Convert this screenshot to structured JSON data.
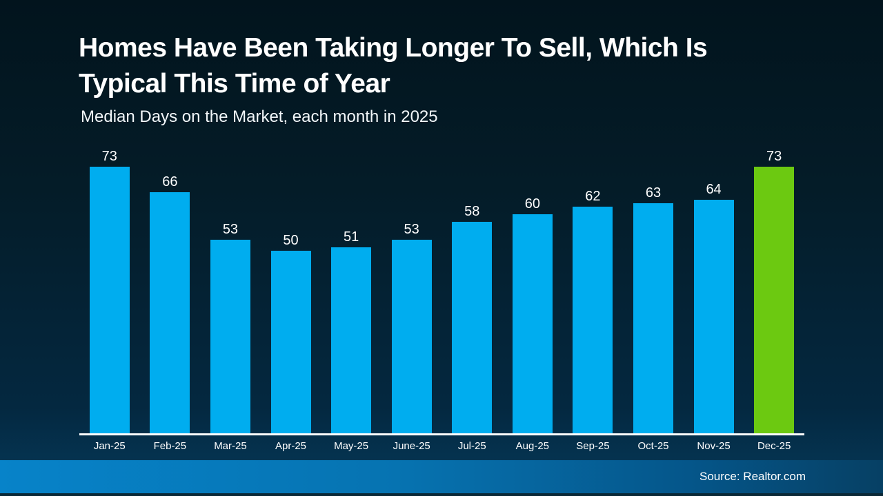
{
  "slide": {
    "title": "Homes Have Been Taking Longer To Sell, Which Is Typical This Time of Year",
    "subtitle": "Median Days on the Market, each month in 2025",
    "source": "Source: Realtor.com"
  },
  "chart_data": {
    "type": "bar",
    "title": "Homes Have Been Taking Longer To Sell, Which Is Typical This Time of Year",
    "subtitle": "Median Days on the Market, each month in 2025",
    "categories": [
      "Jan-25",
      "Feb-25",
      "Mar-25",
      "Apr-25",
      "May-25",
      "June-25",
      "Jul-25",
      "Aug-25",
      "Sep-25",
      "Oct-25",
      "Nov-25",
      "Dec-25"
    ],
    "values": [
      73,
      66,
      53,
      50,
      51,
      53,
      58,
      60,
      62,
      63,
      64,
      73
    ],
    "ylim": [
      0,
      73
    ],
    "xlabel": "",
    "ylabel": "",
    "grid": false,
    "legend": false,
    "data_labels": true,
    "bar_color": "#00ADEF",
    "highlight_color": "#6CC911",
    "highlight_index": 11,
    "axis_line_color": "#FFFFFF",
    "label_color": "#FFFFFF"
  },
  "colors": {
    "background_top": "#02141D",
    "background_bottom": "#053350",
    "footer_left": "#0783C9",
    "footer_right": "#064064",
    "text": "#FFFFFF"
  }
}
